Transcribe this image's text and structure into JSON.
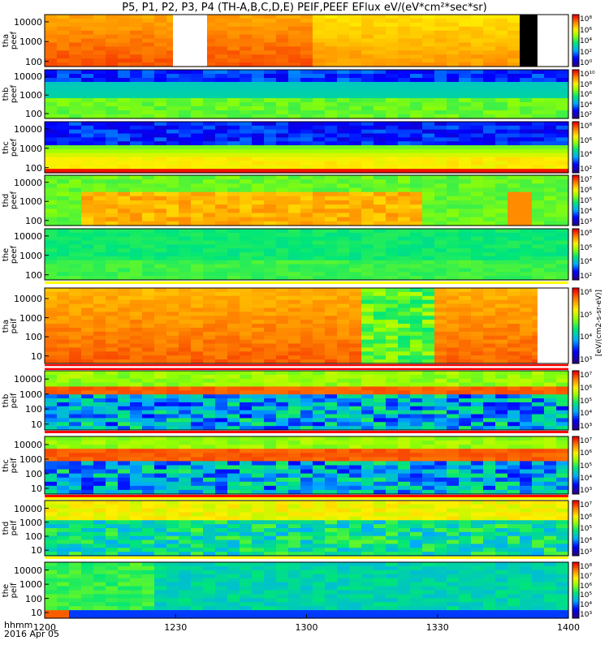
{
  "chart_data": {
    "type": "heatmap",
    "title": "P5, P1, P2, P3, P4 (TH-A,B,C,D,E) PEIF,PEEF EFlux eV/(eV*cm²*sec*sr)",
    "xlabel": "hhmm",
    "xdate": "2016 Apr 05",
    "x_tick_labels": [
      "1200",
      "1230",
      "1300",
      "1330",
      "1400"
    ],
    "x_range": [
      "1200",
      "1400"
    ],
    "y_scale": "log",
    "colorbar_units": "[eV/(cm2-s-sr-eV)]",
    "panels": [
      {
        "label": [
          "tha",
          "peef"
        ],
        "yticks": [
          "10000",
          "1000",
          "100"
        ],
        "cb_ticks": [
          "10⁸",
          "10⁶",
          "10⁴",
          "10²",
          "10⁰"
        ],
        "pattern": "orange_high",
        "gaps": [
          [
            0.245,
            0.31,
            "white"
          ],
          [
            0.907,
            0.941,
            "black"
          ],
          [
            0.941,
            1.0,
            "white"
          ]
        ]
      },
      {
        "label": [
          "thb",
          "peef"
        ],
        "yticks": [
          "10000",
          "1000",
          "100"
        ],
        "cb_ticks": [
          "10¹⁰",
          "10⁸",
          "10⁶",
          "10⁴",
          "10²"
        ],
        "pattern": "blue_green"
      },
      {
        "label": [
          "thc",
          "peef"
        ],
        "yticks": [
          "10000",
          "1000",
          "100"
        ],
        "cb_ticks": [
          "10⁸",
          "10⁶",
          "10⁴",
          "10²"
        ],
        "pattern": "blue_red_low"
      },
      {
        "label": [
          "thd",
          "peef"
        ],
        "yticks": [
          "10000",
          "1000",
          "100"
        ],
        "cb_ticks": [
          "10⁷",
          "10⁶",
          "10⁵",
          "10⁴",
          "10³"
        ],
        "pattern": "orange_blob"
      },
      {
        "label": [
          "the",
          "peef"
        ],
        "yticks": [
          "10000",
          "1000",
          "100"
        ],
        "cb_ticks": [
          "10⁸",
          "10⁶",
          "10⁴",
          "10²"
        ],
        "pattern": "green_flat"
      },
      {
        "label": [
          "tha",
          "peif"
        ],
        "yticks": [
          "10000",
          "1000",
          "100",
          "10"
        ],
        "cb_ticks": [
          "10⁶",
          "10⁵",
          "10⁴",
          "10³"
        ],
        "pattern": "orange_yellow",
        "gaps": [
          [
            0.941,
            1.0,
            "white"
          ]
        ]
      },
      {
        "label": [
          "thb",
          "peif"
        ],
        "yticks": [
          "10000",
          "1000",
          "100",
          "10"
        ],
        "cb_ticks": [
          "10⁷",
          "10⁶",
          "10⁵",
          "10⁴",
          "10³"
        ],
        "pattern": "blue_band"
      },
      {
        "label": [
          "thc",
          "peif"
        ],
        "yticks": [
          "10000",
          "1000",
          "100",
          "10"
        ],
        "cb_ticks": [
          "10⁷",
          "10⁶",
          "10⁵",
          "10⁴",
          "10³"
        ],
        "pattern": "blue_band"
      },
      {
        "label": [
          "thd",
          "peif"
        ],
        "yticks": [
          "10000",
          "1000",
          "100",
          "10"
        ],
        "cb_ticks": [
          "10⁷",
          "10⁶",
          "10⁵",
          "10⁴",
          "10³"
        ],
        "pattern": "green_blue"
      },
      {
        "label": [
          "the",
          "peif"
        ],
        "yticks": [
          "10000",
          "1000",
          "100",
          "10"
        ],
        "cb_ticks": [
          "10⁸",
          "10⁷",
          "10⁶",
          "10⁵",
          "10⁴",
          "10³"
        ],
        "pattern": "cyan_green"
      }
    ]
  }
}
